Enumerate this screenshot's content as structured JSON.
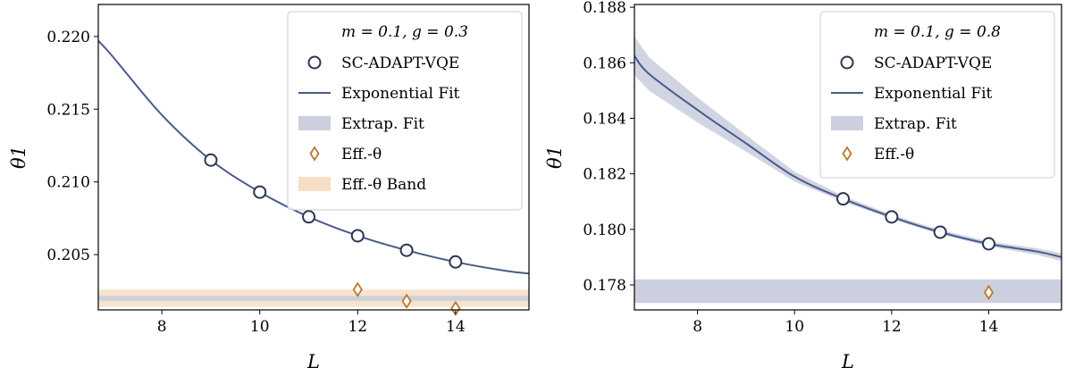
{
  "colors": {
    "fit": "#4a5a8c",
    "marker_edge": "#2b3552",
    "extrap_band": "#ccd0de",
    "eff_marker": "#b87830",
    "eff_band": "#f5dfc6"
  },
  "chart_data": [
    {
      "type": "line",
      "panel": "left",
      "xlabel": "L",
      "ylabel": "θ1",
      "xlim": [
        6.7,
        15.5
      ],
      "ylim": [
        0.2012,
        0.2222
      ],
      "xticks": [
        8,
        10,
        12,
        14
      ],
      "xtick_labels": [
        "8",
        "10",
        "12",
        "14"
      ],
      "yticks": [
        0.205,
        0.21,
        0.215,
        0.22
      ],
      "ytick_labels": [
        "0.205",
        "0.210",
        "0.215",
        "0.220"
      ],
      "legend_title": "m = 0.1, g = 0.3",
      "legend_position": "top-right",
      "legend": [
        "SC-ADAPT-VQE",
        "Exponential Fit",
        "Extrap. Fit",
        "Eff.-θ",
        "Eff.-θ Band"
      ],
      "series": [
        {
          "name": "SC-ADAPT-VQE",
          "kind": "markers",
          "x": [
            9,
            10,
            11,
            12,
            13,
            14
          ],
          "y": [
            0.2115,
            0.2093,
            0.2076,
            0.2063,
            0.2053,
            0.2045
          ]
        },
        {
          "name": "Exponential Fit",
          "kind": "curve",
          "x": [
            6.7,
            7,
            8,
            9,
            10,
            11,
            12,
            13,
            14,
            15,
            15.5
          ],
          "y": [
            0.2197,
            0.2186,
            0.2146,
            0.2115,
            0.2093,
            0.2076,
            0.2063,
            0.2053,
            0.2045,
            0.2039,
            0.2037
          ]
        },
        {
          "name": "Extrap. Fit",
          "kind": "hband",
          "y_center": 0.202,
          "y_range": [
            0.2018,
            0.2022
          ]
        },
        {
          "name": "Eff.-θ",
          "kind": "diamonds",
          "x": [
            12,
            13,
            14
          ],
          "y": [
            0.2026,
            0.2018,
            0.2013
          ]
        },
        {
          "name": "Eff.-θ Band",
          "kind": "hband",
          "y_range": [
            0.2014,
            0.2026
          ]
        }
      ]
    },
    {
      "type": "line",
      "panel": "right",
      "xlabel": "L",
      "ylabel": "θ1",
      "xlim": [
        6.7,
        15.5
      ],
      "ylim": [
        0.1771,
        0.1881
      ],
      "xticks": [
        8,
        10,
        12,
        14
      ],
      "xtick_labels": [
        "8",
        "10",
        "12",
        "14"
      ],
      "yticks": [
        0.178,
        0.18,
        0.182,
        0.184,
        0.186,
        0.188
      ],
      "ytick_labels": [
        "0.178",
        "0.180",
        "0.182",
        "0.184",
        "0.186",
        "0.188"
      ],
      "legend_title": "m = 0.1, g = 0.8",
      "legend_position": "top-right",
      "legend": [
        "SC-ADAPT-VQE",
        "Exponential Fit",
        "Extrap. Fit",
        "Eff.-θ"
      ],
      "series": [
        {
          "name": "SC-ADAPT-VQE",
          "kind": "markers",
          "x": [
            11,
            12,
            13,
            14
          ],
          "y": [
            0.1811,
            0.18045,
            0.1799,
            0.17948
          ]
        },
        {
          "name": "Exponential Fit",
          "kind": "curve",
          "x": [
            6.7,
            7,
            8,
            9,
            10,
            11,
            12,
            13,
            14,
            15,
            15.5
          ],
          "y": [
            0.18625,
            0.1856,
            0.1843,
            0.1831,
            0.1819,
            0.1811,
            0.18045,
            0.1799,
            0.17948,
            0.1792,
            0.179
          ],
          "band_halfwidth": [
            0.0007,
            0.0006,
            0.00045,
            0.0003,
            0.00018,
            0.0001,
            8e-05,
            8e-05,
            9e-05,
            0.00012,
            0.00014
          ]
        },
        {
          "name": "Extrap. Fit",
          "kind": "hband",
          "y_range": [
            0.17735,
            0.1782
          ]
        },
        {
          "name": "Eff.-θ",
          "kind": "diamonds",
          "x": [
            14
          ],
          "y": [
            0.17773
          ]
        }
      ]
    }
  ]
}
